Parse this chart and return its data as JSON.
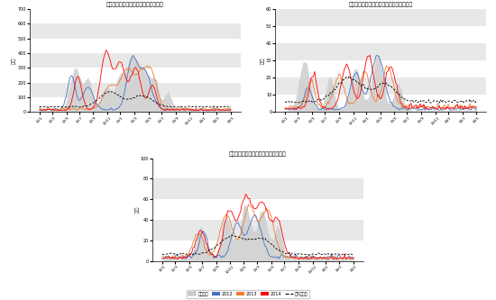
{
  "title1": "郑州批发市场红枣日到货量及到货价格",
  "title2": "乌鲁木齐批发市场红枣日到货量及到货价格",
  "title3": "西安批发市场红枣日到货量及到货价格",
  "ylabel": "元/吨",
  "legend_labels": [
    "日到货量",
    "2012",
    "2013",
    "2014",
    "近5年均值"
  ],
  "legend_colors": [
    "#d0d0d0",
    "#4472c4",
    "#ed7d31",
    "#ff0000",
    "#000000"
  ],
  "bg_color": "#ffffff",
  "subplot_bg": "#e8e8e8",
  "band_color": "#f5f5f5",
  "ylim1": [
    0,
    700
  ],
  "yticks1": [
    0,
    100,
    200,
    300,
    400,
    500,
    600,
    700
  ],
  "ylim2": [
    0,
    60
  ],
  "yticks2": [
    0,
    10,
    20,
    30,
    40,
    50,
    60
  ],
  "ylim3": [
    0,
    100
  ],
  "yticks3": [
    0,
    20,
    40,
    60,
    80,
    100
  ],
  "n_points": 150,
  "xtick_labels": [
    "12/1",
    "12/3",
    "12/5",
    "12/7",
    "12/9",
    "12/11",
    "13/1",
    "13/3",
    "13/5",
    "13/7",
    "13/9",
    "13/11",
    "14/1",
    "14/3",
    "14/5"
  ],
  "vol1_scale": 80,
  "vol2_scale": 8,
  "vol3_scale": 15
}
